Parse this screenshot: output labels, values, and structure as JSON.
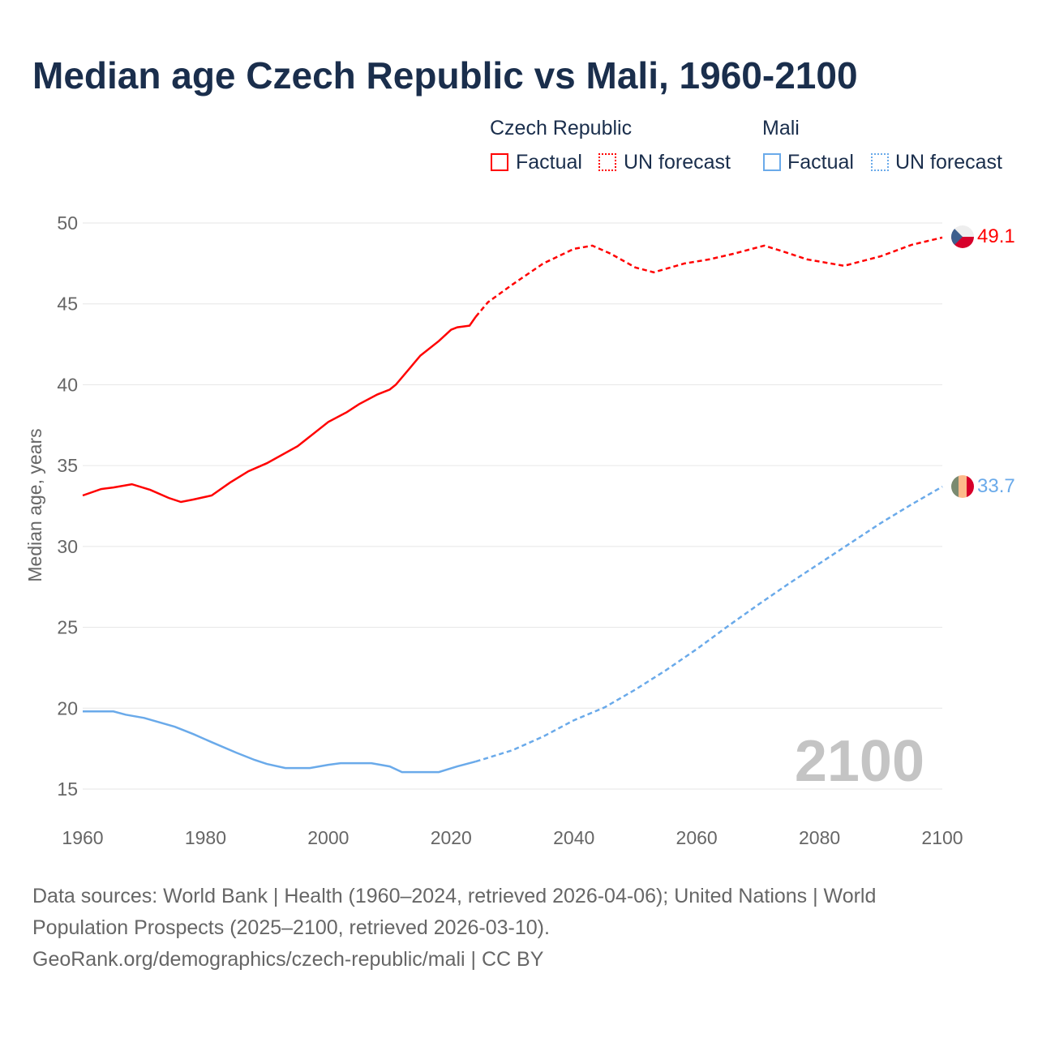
{
  "title": "Median age Czech Republic vs Mali, 1960-2100",
  "legend": {
    "cz_title": "Czech Republic",
    "mali_title": "Mali",
    "factual": "Factual",
    "forecast": "UN forecast"
  },
  "watermark_year": "2100",
  "footer": {
    "line1": "Data sources: World Bank | Health (1960–2024, retrieved 2026-04-06); United Nations | World",
    "line2": "Population Prospects (2025–2100, retrieved 2026-03-10).",
    "line3": "GeoRank.org/demographics/czech-republic/mali | CC BY"
  },
  "chart_data": {
    "type": "line",
    "title": "Median age Czech Republic vs Mali, 1960-2100",
    "xlabel": "",
    "ylabel": "Median age, years",
    "xlim": [
      1960,
      2100
    ],
    "ylim": [
      15,
      50
    ],
    "xticks": [
      1960,
      1980,
      2000,
      2020,
      2040,
      2060,
      2080,
      2100
    ],
    "yticks": [
      15,
      20,
      25,
      30,
      35,
      40,
      45,
      50
    ],
    "forecast_start": 2024,
    "series": [
      {
        "name": "Czech Republic",
        "color": "#ff0000",
        "end_label": "49.1",
        "x": [
          1960,
          1963,
          1965,
          1968,
          1971,
          1974,
          1976,
          1978,
          1981,
          1984,
          1987,
          1990,
          1995,
          2000,
          2003,
          2005,
          2008,
          2010,
          2011,
          2015,
          2018,
          2020,
          2021,
          2023,
          2024,
          2026,
          2030,
          2035,
          2040,
          2043,
          2046,
          2050,
          2053,
          2058,
          2062,
          2066,
          2071,
          2074,
          2078,
          2084,
          2090,
          2095,
          2100
        ],
        "y": [
          33.15,
          33.55,
          33.65,
          33.85,
          33.5,
          33.0,
          32.75,
          32.9,
          33.15,
          33.95,
          34.65,
          35.15,
          36.2,
          37.7,
          38.3,
          38.8,
          39.4,
          39.7,
          40.0,
          41.8,
          42.7,
          43.4,
          43.55,
          43.65,
          44.2,
          45.1,
          46.2,
          47.5,
          48.4,
          48.6,
          48.1,
          47.25,
          46.95,
          47.5,
          47.75,
          48.1,
          48.6,
          48.25,
          47.75,
          47.35,
          47.95,
          48.65,
          49.1
        ]
      },
      {
        "name": "Mali",
        "color": "#6aaaea",
        "end_label": "33.7",
        "x": [
          1960,
          1965,
          1967,
          1970,
          1975,
          1978,
          1981,
          1985,
          1988,
          1990,
          1993,
          1997,
          2000,
          2002,
          2007,
          2010,
          2012,
          2018,
          2021,
          2024,
          2030,
          2035,
          2040,
          2045,
          2050,
          2055,
          2060,
          2065,
          2070,
          2075,
          2080,
          2085,
          2090,
          2095,
          2100
        ],
        "y": [
          19.8,
          19.8,
          19.6,
          19.4,
          18.85,
          18.4,
          17.9,
          17.25,
          16.8,
          16.55,
          16.3,
          16.3,
          16.5,
          16.6,
          16.6,
          16.4,
          16.05,
          16.05,
          16.4,
          16.7,
          17.4,
          18.25,
          19.25,
          20.05,
          21.15,
          22.35,
          23.65,
          25.05,
          26.4,
          27.7,
          28.95,
          30.2,
          31.45,
          32.6,
          33.7
        ]
      }
    ]
  }
}
